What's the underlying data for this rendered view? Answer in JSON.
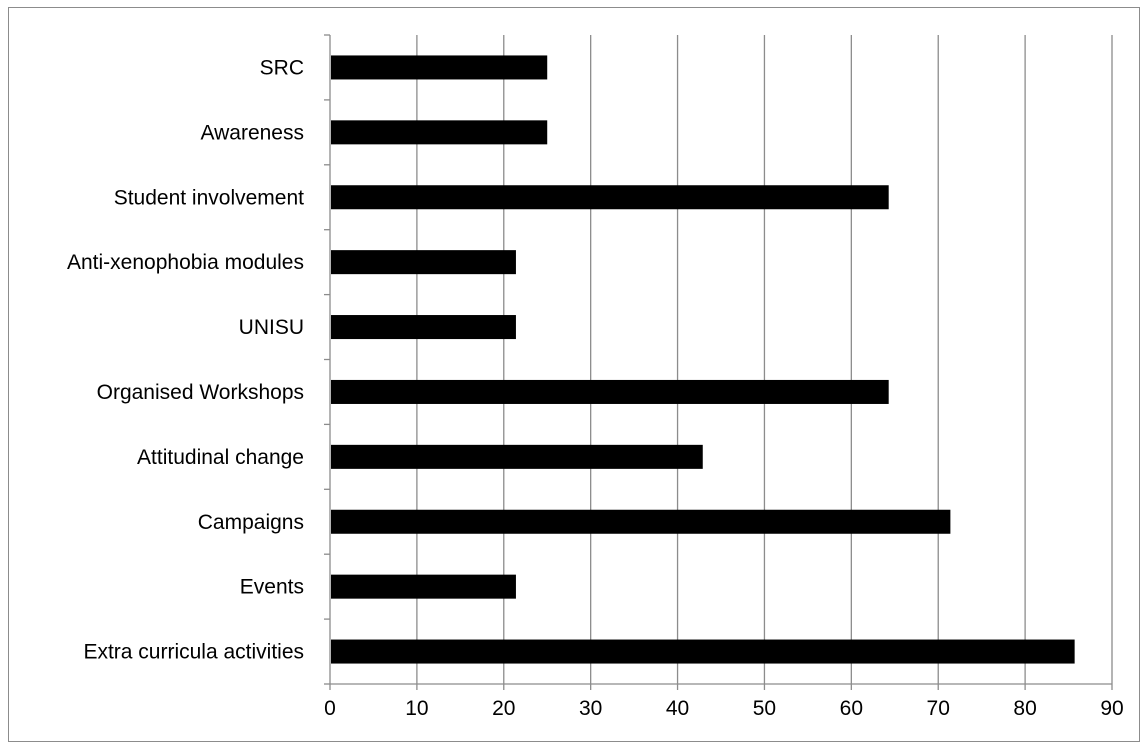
{
  "chart_data": {
    "type": "bar",
    "orientation": "horizontal",
    "title": "",
    "xlabel": "",
    "ylabel": "",
    "categories": [
      "SRC",
      "Awareness",
      "Student involvement",
      "Anti-xenophobia modules",
      "UNISU",
      "Organised Workshops",
      "Attitudinal change",
      "Campaigns",
      "Events",
      "Extra curricula activities"
    ],
    "values": [
      25,
      25,
      64.3,
      21.4,
      21.4,
      64.3,
      42.9,
      71.4,
      21.4,
      85.7
    ],
    "xlim": [
      0,
      90
    ],
    "xticks": [
      "0",
      "10",
      "20",
      "30",
      "40",
      "50",
      "60",
      "70",
      "80",
      "90"
    ],
    "grid": "vertical",
    "legend": "none",
    "bar_color": "#000000",
    "grid_color": "#8c8c8c"
  }
}
